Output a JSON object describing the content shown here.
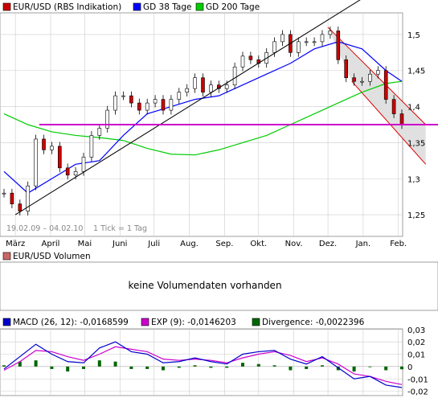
{
  "colors": {
    "price_candle_up": "#000000",
    "price_candle_down": "#cc0000",
    "sma38": "#0000ff",
    "sma200": "#00cc00",
    "support": "#cc00cc",
    "trend_up": "#000000",
    "channel_down": "#dd0000",
    "channel_fill": "#e0e0e0",
    "macd_line": "#0000cc",
    "exp_line": "#cc00cc",
    "divergence": "#006600",
    "volume_legend": "#cc6666",
    "grid": "#cccccc"
  },
  "price_panel": {
    "legend": [
      {
        "label": "EUR/USD (RBS Indikation)",
        "color": "#cc0000"
      },
      {
        "label": "GD 38 Tage",
        "color": "#0000ff"
      },
      {
        "label": "GD 200 Tage",
        "color": "#00cc00"
      }
    ],
    "date_range": "19.02.09 – 04.02.10",
    "tick_info": "1 Tick = 1 Tag",
    "x_months": [
      "März",
      "April",
      "Mai",
      "Juni",
      "Juli",
      "Aug.",
      "Sep.",
      "Okt.",
      "Nov.",
      "Dez.",
      "Jan.",
      "Feb."
    ]
  },
  "volume_panel": {
    "legend_label": "EUR/USD Volumen",
    "message": "keine Volumendaten vorhanden"
  },
  "macd_panel": {
    "legend": [
      {
        "label": "MACD (26, 12): -0,0168599",
        "color": "#0000cc"
      },
      {
        "label": "EXP (9): -0,0146203",
        "color": "#cc00cc"
      },
      {
        "label": "Divergence: -0,0022396",
        "color": "#006600"
      }
    ],
    "y_tick_labels": [
      "0,03",
      "0,02",
      "0,01",
      "0",
      "-0,01",
      "-0,02"
    ]
  },
  "chart_data": [
    {
      "type": "line",
      "title": "EUR/USD (RBS Indikation)",
      "xlabel": "",
      "ylabel": "",
      "ylim": [
        1.22,
        1.53
      ],
      "y_ticks": [
        1.25,
        1.3,
        1.35,
        1.4,
        1.45,
        1.5
      ],
      "y_tick_labels": [
        "1,25",
        "1,3",
        "1,35",
        "1,4",
        "1,45",
        "1,5"
      ],
      "x_range": [
        "2009-02-19",
        "2010-02-04"
      ],
      "x_ticks": [
        "2009-03-01",
        "2009-04-01",
        "2009-05-01",
        "2009-06-01",
        "2009-07-01",
        "2009-08-01",
        "2009-09-01",
        "2009-10-01",
        "2009-11-01",
        "2009-12-01",
        "2010-01-01",
        "2010-02-01"
      ],
      "series": [
        {
          "name": "EUR/USD (RBS Indikation)",
          "style": "candlestick",
          "x": [
            "2009-02-19",
            "2009-02-26",
            "2009-03-05",
            "2009-03-12",
            "2009-03-19",
            "2009-03-26",
            "2009-04-02",
            "2009-04-09",
            "2009-04-16",
            "2009-04-23",
            "2009-04-30",
            "2009-05-07",
            "2009-05-14",
            "2009-05-21",
            "2009-05-28",
            "2009-06-04",
            "2009-06-11",
            "2009-06-18",
            "2009-06-25",
            "2009-07-02",
            "2009-07-09",
            "2009-07-16",
            "2009-07-23",
            "2009-07-30",
            "2009-08-06",
            "2009-08-13",
            "2009-08-20",
            "2009-08-27",
            "2009-09-03",
            "2009-09-10",
            "2009-09-17",
            "2009-09-24",
            "2009-10-01",
            "2009-10-08",
            "2009-10-15",
            "2009-10-22",
            "2009-10-29",
            "2009-11-05",
            "2009-11-12",
            "2009-11-19",
            "2009-11-26",
            "2009-12-03",
            "2009-12-10",
            "2009-12-17",
            "2009-12-24",
            "2009-12-31",
            "2010-01-07",
            "2010-01-14",
            "2010-01-21",
            "2010-01-28",
            "2010-02-04"
          ],
          "y": [
            1.28,
            1.265,
            1.255,
            1.29,
            1.355,
            1.34,
            1.345,
            1.315,
            1.305,
            1.31,
            1.33,
            1.36,
            1.37,
            1.395,
            1.415,
            1.415,
            1.405,
            1.395,
            1.405,
            1.41,
            1.395,
            1.41,
            1.42,
            1.425,
            1.44,
            1.42,
            1.43,
            1.425,
            1.43,
            1.455,
            1.47,
            1.465,
            1.46,
            1.475,
            1.49,
            1.5,
            1.475,
            1.49,
            1.49,
            1.49,
            1.5,
            1.505,
            1.465,
            1.44,
            1.435,
            1.435,
            1.445,
            1.45,
            1.41,
            1.39,
            1.375
          ]
        },
        {
          "name": "GD 38 Tage",
          "x": [
            "2009-02-19",
            "2009-03-12",
            "2009-04-02",
            "2009-04-23",
            "2009-05-14",
            "2009-06-04",
            "2009-06-25",
            "2009-07-16",
            "2009-08-06",
            "2009-08-27",
            "2009-09-17",
            "2009-10-08",
            "2009-10-29",
            "2009-11-19",
            "2009-12-10",
            "2009-12-31",
            "2010-01-21",
            "2010-02-04"
          ],
          "y": [
            1.31,
            1.28,
            1.3,
            1.32,
            1.325,
            1.36,
            1.39,
            1.4,
            1.41,
            1.415,
            1.43,
            1.445,
            1.46,
            1.48,
            1.49,
            1.48,
            1.45,
            1.435
          ]
        },
        {
          "name": "GD 200 Tage",
          "x": [
            "2009-02-19",
            "2009-03-12",
            "2009-04-02",
            "2009-04-23",
            "2009-05-14",
            "2009-06-04",
            "2009-06-25",
            "2009-07-16",
            "2009-08-06",
            "2009-08-27",
            "2009-09-17",
            "2009-10-08",
            "2009-10-29",
            "2009-11-19",
            "2009-12-10",
            "2009-12-31",
            "2010-01-21",
            "2010-02-04"
          ],
          "y": [
            1.39,
            1.375,
            1.365,
            1.36,
            1.357,
            1.353,
            1.342,
            1.334,
            1.333,
            1.34,
            1.35,
            1.36,
            1.375,
            1.39,
            1.405,
            1.42,
            1.432,
            1.435
          ]
        }
      ]
    },
    {
      "type": "line",
      "title": "MACD (26, 12)",
      "xlabel": "",
      "ylabel": "",
      "ylim": [
        -0.0235,
        0.0305
      ],
      "y_ticks": [
        0.03,
        0.02,
        0.01,
        0,
        -0.01,
        -0.02
      ],
      "series": [
        {
          "name": "MACD (26, 12): -0,0168599",
          "x": [
            "2009-02-19",
            "2009-03-05",
            "2009-03-19",
            "2009-04-02",
            "2009-04-16",
            "2009-04-30",
            "2009-05-14",
            "2009-05-28",
            "2009-06-11",
            "2009-06-25",
            "2009-07-09",
            "2009-07-23",
            "2009-08-06",
            "2009-08-20",
            "2009-09-03",
            "2009-09-17",
            "2009-10-01",
            "2009-10-15",
            "2009-10-29",
            "2009-11-12",
            "2009-11-26",
            "2009-12-10",
            "2009-12-24",
            "2010-01-07",
            "2010-01-21",
            "2010-02-04"
          ],
          "y": [
            -0.002,
            0.008,
            0.018,
            0.01,
            0.004,
            0.003,
            0.015,
            0.02,
            0.012,
            0.01,
            0.003,
            0.004,
            0.007,
            0.004,
            0.002,
            0.01,
            0.012,
            0.013,
            0.006,
            0.002,
            0.008,
            -0.001,
            -0.01,
            -0.008,
            -0.015,
            -0.017
          ]
        },
        {
          "name": "EXP (9): -0,0146203",
          "x": [
            "2009-02-19",
            "2009-03-05",
            "2009-03-19",
            "2009-04-02",
            "2009-04-16",
            "2009-04-30",
            "2009-05-14",
            "2009-05-28",
            "2009-06-11",
            "2009-06-25",
            "2009-07-09",
            "2009-07-23",
            "2009-08-06",
            "2009-08-20",
            "2009-09-03",
            "2009-09-17",
            "2009-10-01",
            "2009-10-15",
            "2009-10-29",
            "2009-11-12",
            "2009-11-26",
            "2009-12-10",
            "2009-12-24",
            "2010-01-07",
            "2010-01-21",
            "2010-02-04"
          ],
          "y": [
            -0.003,
            0.004,
            0.013,
            0.012,
            0.008,
            0.005,
            0.01,
            0.016,
            0.014,
            0.012,
            0.006,
            0.005,
            0.006,
            0.005,
            0.003,
            0.007,
            0.01,
            0.012,
            0.009,
            0.004,
            0.007,
            0.002,
            -0.006,
            -0.008,
            -0.012,
            -0.0146
          ]
        },
        {
          "name": "Divergence: -0,0022396",
          "style": "histogram",
          "x": [
            "2009-02-19",
            "2009-03-05",
            "2009-03-19",
            "2009-04-02",
            "2009-04-16",
            "2009-04-30",
            "2009-05-14",
            "2009-05-28",
            "2009-06-11",
            "2009-06-25",
            "2009-07-09",
            "2009-07-23",
            "2009-08-06",
            "2009-08-20",
            "2009-09-03",
            "2009-09-17",
            "2009-10-01",
            "2009-10-15",
            "2009-10-29",
            "2009-11-12",
            "2009-11-26",
            "2009-12-10",
            "2009-12-24",
            "2010-01-07",
            "2010-01-21",
            "2010-02-04"
          ],
          "y": [
            0.001,
            0.004,
            0.005,
            -0.002,
            -0.004,
            -0.002,
            0.005,
            0.004,
            -0.002,
            -0.002,
            -0.003,
            -0.001,
            0.001,
            -0.001,
            -0.001,
            0.003,
            0.002,
            0.001,
            -0.003,
            -0.002,
            0.001,
            -0.003,
            -0.004,
            0,
            -0.003,
            -0.0022
          ]
        }
      ]
    }
  ]
}
